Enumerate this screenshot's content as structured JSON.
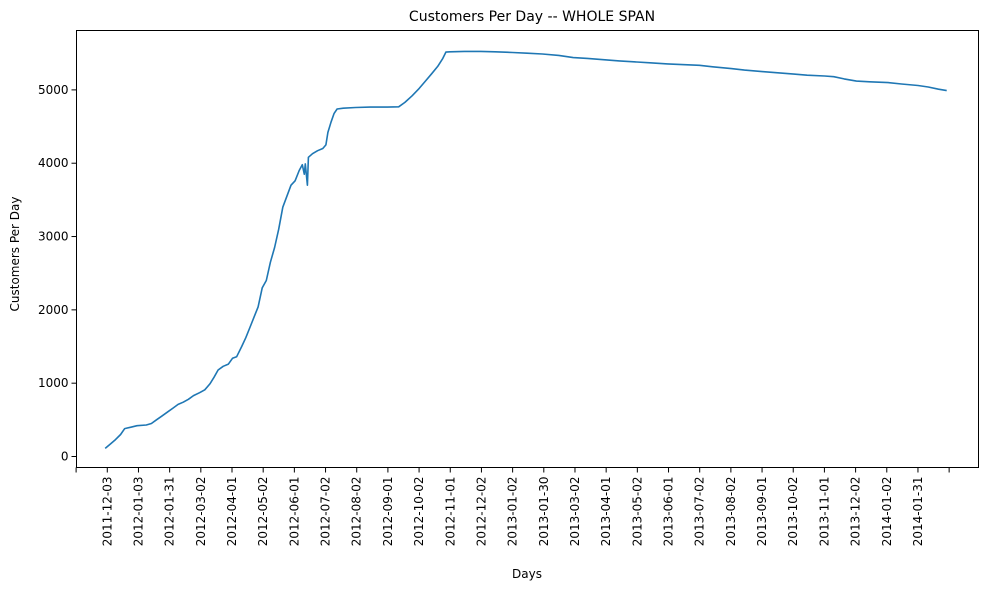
{
  "chart_data": {
    "type": "line",
    "title": "Customers Per Day -- WHOLE SPAN",
    "xlabel": "Days",
    "ylabel": "Customers Per Day",
    "xlim": [
      "2011-11-03",
      "2014-03-31"
    ],
    "ylim": [
      -150,
      5810
    ],
    "yticks": [
      0,
      1000,
      2000,
      3000,
      4000,
      5000
    ],
    "xticks": [
      "",
      "2011-12-03",
      "2012-01-03",
      "2012-01-31",
      "2012-03-02",
      "2012-04-01",
      "2012-05-02",
      "2012-06-01",
      "2012-07-02",
      "2012-08-02",
      "2012-09-01",
      "2012-10-02",
      "2012-11-01",
      "2012-12-02",
      "2013-01-02",
      "2013-01-30",
      "2013-03-02",
      "2013-04-01",
      "2013-05-02",
      "2013-06-01",
      "2013-07-02",
      "2013-08-02",
      "2013-09-01",
      "2013-10-02",
      "2013-11-01",
      "2013-12-02",
      "2014-01-02",
      "2014-01-31",
      ""
    ],
    "grid": false,
    "series": [
      {
        "color": "#1f77b4",
        "points": [
          [
            "2011-12-01",
            110
          ],
          [
            "2011-12-06",
            170
          ],
          [
            "2011-12-11",
            230
          ],
          [
            "2011-12-16",
            300
          ],
          [
            "2011-12-20",
            380
          ],
          [
            "2011-12-26",
            400
          ],
          [
            "2012-01-01",
            420
          ],
          [
            "2012-01-10",
            430
          ],
          [
            "2012-01-15",
            450
          ],
          [
            "2012-01-20",
            500
          ],
          [
            "2012-01-25",
            550
          ],
          [
            "2012-01-31",
            610
          ],
          [
            "2012-02-05",
            660
          ],
          [
            "2012-02-10",
            710
          ],
          [
            "2012-02-15",
            740
          ],
          [
            "2012-02-20",
            780
          ],
          [
            "2012-02-25",
            830
          ],
          [
            "2012-03-02",
            870
          ],
          [
            "2012-03-07",
            910
          ],
          [
            "2012-03-12",
            990
          ],
          [
            "2012-03-16",
            1080
          ],
          [
            "2012-03-20",
            1180
          ],
          [
            "2012-03-25",
            1230
          ],
          [
            "2012-03-30",
            1260
          ],
          [
            "2012-04-03",
            1340
          ],
          [
            "2012-04-07",
            1360
          ],
          [
            "2012-04-12",
            1500
          ],
          [
            "2012-04-16",
            1620
          ],
          [
            "2012-04-20",
            1760
          ],
          [
            "2012-04-24",
            1900
          ],
          [
            "2012-04-28",
            2040
          ],
          [
            "2012-05-02",
            2300
          ],
          [
            "2012-05-06",
            2400
          ],
          [
            "2012-05-10",
            2650
          ],
          [
            "2012-05-14",
            2850
          ],
          [
            "2012-05-18",
            3100
          ],
          [
            "2012-05-22",
            3400
          ],
          [
            "2012-05-26",
            3550
          ],
          [
            "2012-05-30",
            3700
          ],
          [
            "2012-06-03",
            3760
          ],
          [
            "2012-06-07",
            3900
          ],
          [
            "2012-06-10",
            3980
          ],
          [
            "2012-06-12",
            3850
          ],
          [
            "2012-06-13",
            3990
          ],
          [
            "2012-06-15",
            3700
          ],
          [
            "2012-06-16",
            4080
          ],
          [
            "2012-06-20",
            4130
          ],
          [
            "2012-06-25",
            4170
          ],
          [
            "2012-06-30",
            4200
          ],
          [
            "2012-07-03",
            4250
          ],
          [
            "2012-07-05",
            4420
          ],
          [
            "2012-07-08",
            4560
          ],
          [
            "2012-07-11",
            4680
          ],
          [
            "2012-07-14",
            4740
          ],
          [
            "2012-07-20",
            4750
          ],
          [
            "2012-08-01",
            4760
          ],
          [
            "2012-08-15",
            4765
          ],
          [
            "2012-09-01",
            4765
          ],
          [
            "2012-09-12",
            4770
          ],
          [
            "2012-09-18",
            4830
          ],
          [
            "2012-09-25",
            4920
          ],
          [
            "2012-10-02",
            5020
          ],
          [
            "2012-10-08",
            5120
          ],
          [
            "2012-10-14",
            5220
          ],
          [
            "2012-10-20",
            5320
          ],
          [
            "2012-10-25",
            5430
          ],
          [
            "2012-10-28",
            5515
          ],
          [
            "2012-11-01",
            5520
          ],
          [
            "2012-11-15",
            5525
          ],
          [
            "2012-12-01",
            5525
          ],
          [
            "2012-12-15",
            5520
          ],
          [
            "2013-01-01",
            5510
          ],
          [
            "2013-01-15",
            5500
          ],
          [
            "2013-01-30",
            5490
          ],
          [
            "2013-02-15",
            5470
          ],
          [
            "2013-03-01",
            5440
          ],
          [
            "2013-03-15",
            5430
          ],
          [
            "2013-04-01",
            5410
          ],
          [
            "2013-04-15",
            5395
          ],
          [
            "2013-05-02",
            5380
          ],
          [
            "2013-05-15",
            5370
          ],
          [
            "2013-06-01",
            5355
          ],
          [
            "2013-06-15",
            5345
          ],
          [
            "2013-07-02",
            5335
          ],
          [
            "2013-07-15",
            5315
          ],
          [
            "2013-08-02",
            5290
          ],
          [
            "2013-08-15",
            5270
          ],
          [
            "2013-09-01",
            5250
          ],
          [
            "2013-09-15",
            5235
          ],
          [
            "2013-10-02",
            5215
          ],
          [
            "2013-10-15",
            5200
          ],
          [
            "2013-11-01",
            5190
          ],
          [
            "2013-11-10",
            5180
          ],
          [
            "2013-11-20",
            5150
          ],
          [
            "2013-12-02",
            5120
          ],
          [
            "2013-12-15",
            5110
          ],
          [
            "2014-01-02",
            5100
          ],
          [
            "2014-01-15",
            5080
          ],
          [
            "2014-01-31",
            5060
          ],
          [
            "2014-02-10",
            5040
          ],
          [
            "2014-02-20",
            5010
          ],
          [
            "2014-02-28",
            4990
          ]
        ]
      }
    ]
  }
}
